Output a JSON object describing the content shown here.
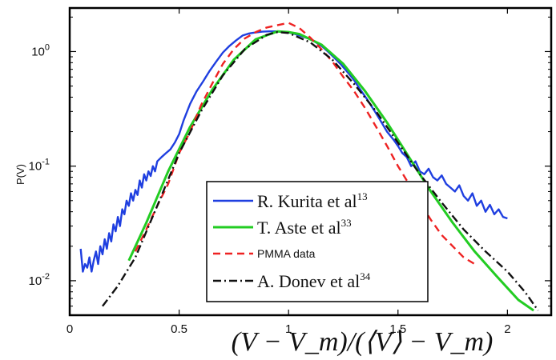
{
  "chart_data": {
    "type": "line",
    "xlabel": "(V − V_m)/(⟨V⟩ − V_m)",
    "ylabel": "P(V)",
    "xlim": [
      0,
      2.2
    ],
    "ylim": [
      0.005,
      2.4
    ],
    "yscale": "log",
    "x_ticks": [
      {
        "v": 0,
        "label": "0"
      },
      {
        "v": 0.5,
        "label": "0.5"
      },
      {
        "v": 1,
        "label": "1"
      },
      {
        "v": 1.5,
        "label": "1.5"
      },
      {
        "v": 2,
        "label": "2"
      }
    ],
    "y_ticks": [
      {
        "v": 0.01,
        "base": "10",
        "exp": "-2"
      },
      {
        "v": 0.1,
        "base": "10",
        "exp": "-1"
      },
      {
        "v": 1,
        "base": "10",
        "exp": "0"
      }
    ],
    "legend_position": "center",
    "series": [
      {
        "name": "R. Kurita et al",
        "name_sup": "13",
        "color": "#1f3fe0",
        "style": "solid",
        "x": [
          0.05,
          0.06,
          0.07,
          0.08,
          0.09,
          0.1,
          0.11,
          0.12,
          0.13,
          0.14,
          0.15,
          0.16,
          0.17,
          0.18,
          0.19,
          0.2,
          0.21,
          0.22,
          0.23,
          0.24,
          0.25,
          0.26,
          0.27,
          0.28,
          0.29,
          0.3,
          0.31,
          0.32,
          0.33,
          0.34,
          0.35,
          0.36,
          0.37,
          0.38,
          0.39,
          0.4,
          0.42,
          0.44,
          0.46,
          0.48,
          0.5,
          0.52,
          0.55,
          0.58,
          0.61,
          0.64,
          0.67,
          0.7,
          0.73,
          0.76,
          0.79,
          0.82,
          0.85,
          0.88,
          0.91,
          0.94,
          0.97,
          1.0,
          1.03,
          1.06,
          1.09,
          1.12,
          1.15,
          1.18,
          1.21,
          1.24,
          1.27,
          1.3,
          1.33,
          1.36,
          1.39,
          1.42,
          1.45,
          1.48,
          1.5,
          1.52,
          1.54,
          1.56,
          1.58,
          1.6,
          1.62,
          1.64,
          1.66,
          1.68,
          1.7,
          1.72,
          1.74,
          1.76,
          1.78,
          1.8,
          1.82,
          1.84,
          1.86,
          1.88,
          1.9,
          1.92,
          1.94,
          1.96,
          1.98,
          2.0
        ],
        "y": [
          0.019,
          0.012,
          0.014,
          0.013,
          0.016,
          0.012,
          0.015,
          0.018,
          0.014,
          0.02,
          0.017,
          0.023,
          0.019,
          0.026,
          0.022,
          0.031,
          0.027,
          0.036,
          0.03,
          0.042,
          0.038,
          0.05,
          0.045,
          0.058,
          0.05,
          0.062,
          0.056,
          0.075,
          0.065,
          0.085,
          0.075,
          0.09,
          0.082,
          0.1,
          0.09,
          0.11,
          0.12,
          0.13,
          0.14,
          0.16,
          0.19,
          0.25,
          0.35,
          0.45,
          0.55,
          0.68,
          0.82,
          0.98,
          1.12,
          1.25,
          1.38,
          1.44,
          1.47,
          1.49,
          1.5,
          1.5,
          1.49,
          1.47,
          1.42,
          1.36,
          1.3,
          1.22,
          1.12,
          1.0,
          0.88,
          0.77,
          0.66,
          0.56,
          0.46,
          0.38,
          0.31,
          0.25,
          0.2,
          0.17,
          0.15,
          0.13,
          0.12,
          0.1,
          0.11,
          0.09,
          0.085,
          0.095,
          0.08,
          0.075,
          0.083,
          0.07,
          0.065,
          0.06,
          0.068,
          0.055,
          0.05,
          0.058,
          0.045,
          0.05,
          0.04,
          0.046,
          0.038,
          0.042,
          0.036,
          0.035
        ]
      },
      {
        "name": "T. Aste et al",
        "name_sup": "33",
        "color": "#22cc22",
        "style": "solid",
        "x": [
          0.27,
          0.35,
          0.45,
          0.55,
          0.65,
          0.75,
          0.85,
          0.95,
          1.0,
          1.05,
          1.15,
          1.25,
          1.35,
          1.45,
          1.55,
          1.65,
          1.75,
          1.85,
          1.95,
          2.05,
          2.12
        ],
        "y": [
          0.015,
          0.032,
          0.09,
          0.22,
          0.46,
          0.85,
          1.28,
          1.5,
          1.48,
          1.42,
          1.15,
          0.78,
          0.45,
          0.24,
          0.12,
          0.06,
          0.032,
          0.018,
          0.011,
          0.0068,
          0.0055
        ]
      },
      {
        "name": "PMMA data",
        "color": "#ee2222",
        "style": "dashed",
        "x": [
          0.3,
          0.35,
          0.4,
          0.45,
          0.5,
          0.55,
          0.6,
          0.65,
          0.7,
          0.75,
          0.8,
          0.85,
          0.9,
          0.95,
          1.0,
          1.05,
          1.1,
          1.15,
          1.2,
          1.25,
          1.3,
          1.35,
          1.4,
          1.45,
          1.5,
          1.55,
          1.6,
          1.65,
          1.7,
          1.75,
          1.8,
          1.85
        ],
        "y": [
          0.018,
          0.028,
          0.045,
          0.07,
          0.13,
          0.2,
          0.34,
          0.52,
          0.78,
          1.05,
          1.3,
          1.48,
          1.62,
          1.7,
          1.78,
          1.6,
          1.32,
          1.05,
          0.82,
          0.6,
          0.45,
          0.32,
          0.22,
          0.15,
          0.1,
          0.07,
          0.048,
          0.034,
          0.025,
          0.02,
          0.016,
          0.014
        ]
      },
      {
        "name": "A. Donev et al",
        "name_sup": "34",
        "color": "#111111",
        "style": "dashdot",
        "x": [
          0.15,
          0.22,
          0.3,
          0.4,
          0.5,
          0.6,
          0.7,
          0.8,
          0.9,
          0.95,
          1.0,
          1.1,
          1.2,
          1.3,
          1.4,
          1.5,
          1.6,
          1.7,
          1.8,
          1.9,
          2.0,
          2.08,
          2.14
        ],
        "y": [
          0.006,
          0.009,
          0.016,
          0.045,
          0.13,
          0.3,
          0.62,
          1.05,
          1.4,
          1.48,
          1.45,
          1.2,
          0.85,
          0.52,
          0.3,
          0.16,
          0.085,
          0.048,
          0.028,
          0.018,
          0.012,
          0.008,
          0.0055
        ]
      }
    ]
  }
}
